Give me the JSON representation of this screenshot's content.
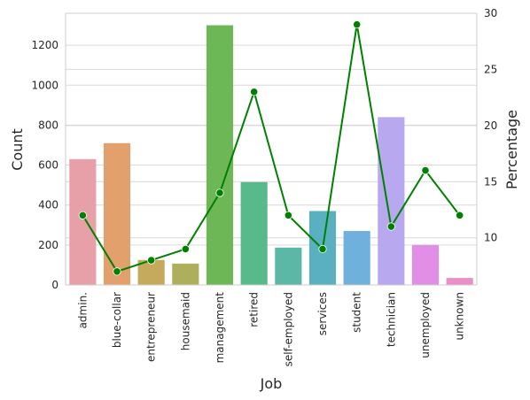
{
  "chart_data": {
    "type": "bar",
    "xlabel": "Job",
    "ylabel_left": "Count",
    "ylabel_right": "Percentage",
    "categories": [
      "admin.",
      "blue-collar",
      "entrepreneur",
      "housemaid",
      "management",
      "retired",
      "self-employed",
      "services",
      "student",
      "technician",
      "unemployed",
      "unknown"
    ],
    "series": [
      {
        "type": "bar",
        "axis": "left",
        "values": [
          630,
          710,
          125,
          107,
          1300,
          515,
          187,
          370,
          270,
          840,
          200,
          35
        ],
        "colors": [
          "#e8a0a8",
          "#e2a06c",
          "#c5aa5e",
          "#aeaf5c",
          "#6db757",
          "#58b98a",
          "#5cb8a6",
          "#5aafc0",
          "#6fb0dc",
          "#b8a8ef",
          "#e08ee6",
          "#ec8fc8"
        ]
      },
      {
        "type": "line",
        "axis": "right",
        "values": [
          12,
          7,
          8,
          9,
          14,
          23,
          12,
          9,
          29,
          11,
          16,
          12
        ],
        "color": "#008000"
      }
    ],
    "ylim_left": [
      0,
      1360
    ],
    "ylim_right": [
      5.8,
      30
    ],
    "yticks_left": [
      0,
      200,
      400,
      600,
      800,
      1000,
      1200
    ],
    "yticks_right": [
      10,
      15,
      20,
      25,
      30
    ],
    "grid": true
  }
}
